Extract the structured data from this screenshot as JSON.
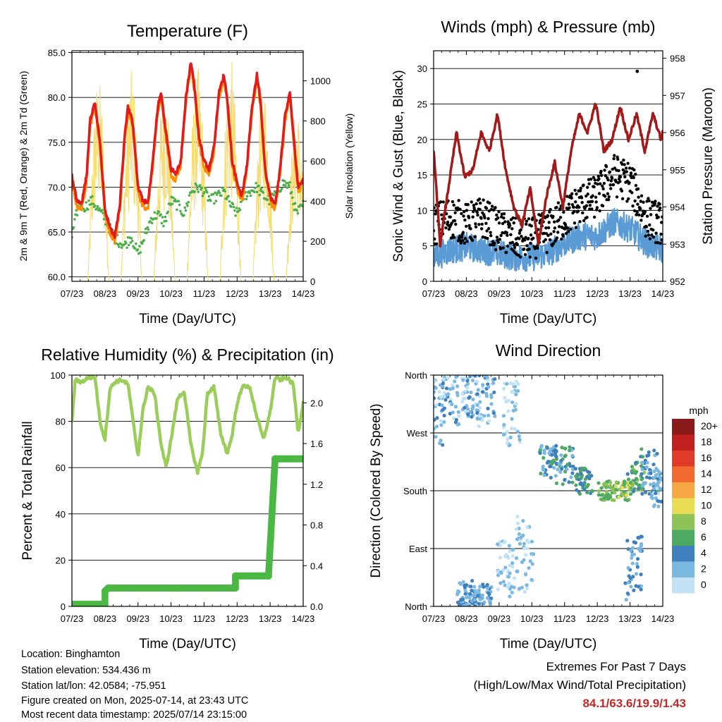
{
  "x_ticks": [
    "07/23",
    "08/23",
    "09/23",
    "10/23",
    "11/23",
    "12/23",
    "13/23",
    "14/23"
  ],
  "colors": {
    "temp2m": "#e31a1c",
    "temp9m": "#ff8c00",
    "dew": "#4daf4a",
    "solar": "#f7dc6f",
    "wind": "#5b9bd5",
    "gust": "#000000",
    "pressure": "#a31818",
    "rh": "#9acd5a",
    "rain": "#4ab842"
  },
  "chart_data": [
    {
      "id": "temperature",
      "type": "line",
      "title": "Temperature (F)",
      "xlabel": "Time (Day/UTC)",
      "ylabel_left": "2m & 9m T (Red, Orange) & 2m Td (Green)",
      "ylabel_right": "Solar Insolation (Yellow)",
      "xlim": [
        0,
        7
      ],
      "ylim": [
        59.5,
        85.2
      ],
      "ylim_right": [
        0,
        1150
      ],
      "yticks": [
        60.0,
        65.0,
        70.0,
        75.0,
        80.0,
        85.0
      ],
      "yticks_right": [
        0,
        200,
        400,
        600,
        800,
        1000
      ],
      "series": [
        {
          "key": "t2m",
          "color": "#e31a1c",
          "x": [
            0,
            0.15,
            0.3,
            0.45,
            0.55,
            0.7,
            0.85,
            1.0,
            1.15,
            1.3,
            1.45,
            1.6,
            1.7,
            1.85,
            2.0,
            2.15,
            2.3,
            2.45,
            2.6,
            2.7,
            2.85,
            3.0,
            3.15,
            3.3,
            3.45,
            3.6,
            3.7,
            3.85,
            4.0,
            4.15,
            4.3,
            4.45,
            4.6,
            4.7,
            4.85,
            5.0,
            5.15,
            5.3,
            5.45,
            5.6,
            5.7,
            5.85,
            6.0,
            6.15,
            6.3,
            6.45,
            6.6,
            6.7,
            6.85,
            7.0
          ],
          "y": [
            71.3,
            68.5,
            68.2,
            71.5,
            77.5,
            79.5,
            75.0,
            67.5,
            65.5,
            64.5,
            68.0,
            76.0,
            79.0,
            77.0,
            70.0,
            68.5,
            68.2,
            73.0,
            79.0,
            80.5,
            76.0,
            72.0,
            71.5,
            73.0,
            80.0,
            84.0,
            81.5,
            75.5,
            73.0,
            72.0,
            74.5,
            80.5,
            82.5,
            80.0,
            73.0,
            70.5,
            69.0,
            72.5,
            79.0,
            82.5,
            80.0,
            72.0,
            69.0,
            68.0,
            72.0,
            78.0,
            80.5,
            76.0,
            70.0,
            71.0
          ]
        },
        {
          "key": "dew",
          "color": "#4daf4a",
          "x": [
            0,
            0.2,
            0.4,
            0.6,
            0.8,
            1.0,
            1.2,
            1.4,
            1.6,
            1.8,
            2.0,
            2.2,
            2.4,
            2.6,
            2.8,
            3.0,
            3.2,
            3.4,
            3.6,
            3.8,
            4.0,
            4.2,
            4.4,
            4.6,
            4.8,
            5.0,
            5.2,
            5.4,
            5.6,
            5.8,
            6.0,
            6.2,
            6.4,
            6.6,
            6.8,
            7.0
          ],
          "y": [
            64.5,
            68.0,
            67.8,
            68.5,
            67.5,
            66.5,
            65.0,
            64.0,
            63.5,
            64.5,
            62.5,
            64.5,
            66.5,
            67.0,
            66.0,
            68.5,
            68.0,
            67.0,
            69.5,
            70.0,
            69.5,
            68.5,
            69.0,
            69.5,
            68.0,
            67.0,
            69.0,
            69.5,
            70.0,
            69.0,
            68.5,
            69.5,
            70.5,
            70.0,
            67.0,
            68.0
          ]
        }
      ],
      "solar_peaks": [
        {
          "day": 0.8,
          "peak": 1020
        },
        {
          "day": 1.8,
          "peak": 1050
        },
        {
          "day": 2.8,
          "peak": 1000
        },
        {
          "day": 3.8,
          "peak": 1080
        },
        {
          "day": 4.8,
          "peak": 1120
        },
        {
          "day": 5.8,
          "peak": 1000
        },
        {
          "day": 6.8,
          "peak": 880
        }
      ]
    },
    {
      "id": "winds",
      "type": "line",
      "title": "Winds (mph) & Pressure (mb)",
      "xlabel": "Time (Day/UTC)",
      "ylabel_left": "Sonic Wind & Gust (Blue, Black)",
      "ylabel_right": "Station Pressure (Maroon)",
      "xlim": [
        0,
        7
      ],
      "ylim": [
        0,
        32.5
      ],
      "ylim_right": [
        952,
        958.2
      ],
      "yticks": [
        0,
        5,
        10,
        15,
        20,
        25,
        30
      ],
      "yticks_right": [
        952,
        953,
        954,
        955,
        956,
        957,
        958
      ],
      "series": [
        {
          "key": "pressure",
          "color": "#a31818",
          "x": [
            0,
            0.2,
            0.45,
            0.7,
            0.95,
            1.2,
            1.45,
            1.7,
            1.95,
            2.2,
            2.45,
            2.7,
            2.95,
            3.2,
            3.45,
            3.7,
            3.95,
            4.2,
            4.45,
            4.7,
            4.95,
            5.2,
            5.45,
            5.7,
            5.95,
            6.2,
            6.45,
            6.7,
            6.95,
            7.0
          ],
          "y": [
            955.5,
            953.0,
            954.5,
            956.0,
            954.8,
            955.0,
            956.0,
            955.5,
            956.5,
            955.0,
            954.0,
            953.5,
            954.5,
            953.0,
            954.3,
            955.2,
            954.0,
            955.5,
            956.5,
            956.0,
            956.8,
            955.5,
            955.8,
            956.7,
            955.8,
            956.5,
            955.5,
            956.5,
            955.8,
            956.0
          ]
        },
        {
          "key": "wind",
          "color": "#5b9bd5",
          "x": [
            0,
            0.5,
            1,
            1.5,
            2,
            2.5,
            3,
            3.5,
            4,
            4.5,
            5,
            5.5,
            6,
            6.5,
            7
          ],
          "y": [
            3,
            4,
            4.5,
            4,
            3.5,
            3,
            3,
            3.5,
            5,
            6,
            6,
            8,
            7,
            5,
            4
          ]
        },
        {
          "key": "gust",
          "color": "#000000",
          "x": [
            0,
            0.5,
            1,
            1.5,
            2,
            2.5,
            3,
            3.5,
            4,
            4.5,
            5,
            5.5,
            6,
            6.5,
            7
          ],
          "y": [
            8,
            9,
            8,
            9,
            7,
            6,
            6,
            7,
            9,
            11,
            12,
            15,
            14,
            9,
            8
          ]
        }
      ]
    },
    {
      "id": "rh",
      "type": "line",
      "title": "Relative Humidity (%) & Precipitation (in)",
      "xlabel": "Time (Day/UTC)",
      "ylabel_left": "Percent & Total Rainfall",
      "xlim": [
        0,
        7
      ],
      "ylim": [
        0,
        100
      ],
      "ylim_right": [
        0,
        2.2727
      ],
      "yticks": [
        0,
        20,
        40,
        60,
        80,
        100
      ],
      "yticks_right": [
        "0.0",
        "0.4",
        "0.8",
        "1.2",
        "1.6",
        "2.0"
      ],
      "series": [
        {
          "key": "rh",
          "color": "#9acd5a",
          "x": [
            0,
            0.1,
            0.3,
            0.5,
            0.7,
            0.85,
            1.0,
            1.15,
            1.3,
            1.5,
            1.7,
            1.85,
            2.0,
            2.15,
            2.3,
            2.5,
            2.7,
            2.85,
            3.0,
            3.2,
            3.4,
            3.6,
            3.8,
            3.95,
            4.1,
            4.3,
            4.5,
            4.7,
            4.85,
            5.0,
            5.2,
            5.4,
            5.6,
            5.8,
            6.0,
            6.15,
            6.3,
            6.5,
            6.7,
            6.85,
            7.0
          ],
          "y": [
            80,
            98,
            97,
            99,
            99,
            80,
            72,
            94,
            97,
            98,
            96,
            80,
            65,
            85,
            95,
            92,
            70,
            60,
            72,
            90,
            93,
            70,
            58,
            66,
            92,
            95,
            75,
            66,
            74,
            88,
            96,
            94,
            82,
            72,
            84,
            99,
            98,
            99,
            96,
            75,
            88
          ]
        },
        {
          "key": "rain",
          "color": "#4ab842",
          "x": [
            0,
            1.0,
            1.0,
            1.1,
            1.1,
            4.95,
            4.95,
            5.95,
            5.95,
            6.15,
            6.15,
            7.0
          ],
          "y": [
            0.02,
            0.02,
            0.15,
            0.18,
            0.18,
            0.18,
            0.3,
            0.3,
            0.3,
            1.45,
            1.45,
            1.45
          ]
        }
      ]
    },
    {
      "id": "direction",
      "type": "scatter",
      "title": "Wind Direction",
      "xlabel": "Time (Day/UTC)",
      "ylabel_left": "Direction (Colored By Speed)",
      "xlim": [
        0,
        7
      ],
      "ylim": [
        0,
        360
      ],
      "yticks": [
        "North",
        "East",
        "South",
        "West",
        "North"
      ],
      "ytick_values": [
        0,
        90,
        180,
        270,
        360
      ],
      "clusters": [
        {
          "day": 0.0,
          "dir": 300,
          "spread": 55,
          "speed": 3
        },
        {
          "day": 0.5,
          "dir": 320,
          "spread": 40,
          "speed": 3
        },
        {
          "day": 1.1,
          "dir": 330,
          "spread": 35,
          "speed": 3
        },
        {
          "day": 1.6,
          "dir": 320,
          "spread": 40,
          "speed": 3
        },
        {
          "day": 2.4,
          "dir": 300,
          "spread": 50,
          "speed": 2
        },
        {
          "day": 2.2,
          "dir": 60,
          "spread": 45,
          "speed": 2
        },
        {
          "day": 1.0,
          "dir": 20,
          "spread": 20,
          "speed": 4
        },
        {
          "day": 1.5,
          "dir": 15,
          "spread": 20,
          "speed": 4
        },
        {
          "day": 2.8,
          "dir": 80,
          "spread": 60,
          "speed": 2
        },
        {
          "day": 3.5,
          "dir": 225,
          "spread": 25,
          "speed": 5
        },
        {
          "day": 4.0,
          "dir": 220,
          "spread": 30,
          "speed": 5
        },
        {
          "day": 4.6,
          "dir": 195,
          "spread": 20,
          "speed": 6
        },
        {
          "day": 5.3,
          "dir": 180,
          "spread": 15,
          "speed": 8
        },
        {
          "day": 5.8,
          "dir": 180,
          "spread": 15,
          "speed": 9
        },
        {
          "day": 6.2,
          "dir": 200,
          "spread": 25,
          "speed": 7
        },
        {
          "day": 6.6,
          "dir": 210,
          "spread": 35,
          "speed": 5
        },
        {
          "day": 6.9,
          "dir": 185,
          "spread": 30,
          "speed": 3
        },
        {
          "day": 6.1,
          "dir": 60,
          "spread": 50,
          "speed": 4
        }
      ],
      "colorbar": {
        "label": "mph",
        "labels": [
          "20+",
          "18",
          "16",
          "14",
          "12",
          "10",
          "8",
          "6",
          "4",
          "2",
          "0"
        ],
        "colors": [
          "#8b1a1a",
          "#c0211f",
          "#e03a28",
          "#f26b2e",
          "#f7a845",
          "#e9dd55",
          "#8ec35a",
          "#4daa64",
          "#3f80bc",
          "#7ab8e2",
          "#c2e3f6"
        ]
      }
    }
  ],
  "footer": {
    "location": "Location: Binghamton",
    "elevation": "Station elevation: 534.436 m",
    "latlon": "Station lat/lon: 42.0584; -75.951",
    "created": "Figure created on Mon, 2025-07-14, at 23:43 UTC",
    "recent": "Most recent data timestamp: 2025/07/14 23:15:00"
  },
  "extremes": {
    "title": "Extremes For Past 7 Days",
    "subtitle": "(High/Low/Max Wind/Total Precipitation)",
    "values": "84.1/63.6/19.9/1.43"
  }
}
